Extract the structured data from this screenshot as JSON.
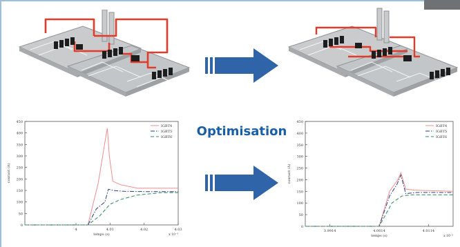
{
  "caption": "Optimisation",
  "colors": {
    "accent": "#1a5fa6",
    "busbar": "#e23b2a",
    "board": "#b9bcbe",
    "arrow": "#2f64a8",
    "igbt4": "#f08c8c",
    "igbt5": "#2a3c86",
    "igbt6": "#2e8b57"
  },
  "chart_data": [
    {
      "type": "line",
      "ylabel": "courant (A)",
      "xlabel": "temps (s)",
      "x_tick_labels": [
        "4",
        "4.01",
        "4.02",
        "4.03"
      ],
      "x_exponent": "x 10⁻³",
      "y_tick_labels": [
        "0",
        "50",
        "100",
        "150",
        "200",
        "250",
        "300",
        "350",
        "400",
        "450"
      ],
      "xlim": [
        3.985,
        4.03
      ],
      "ylim": [
        0,
        450
      ],
      "legend_position": "top-right",
      "series": [
        {
          "name": "IGBT4",
          "color_key": "igbt4",
          "dash": "solid",
          "x": [
            3.985,
            4.0,
            4.0035,
            4.0065,
            4.0085,
            4.0092,
            4.0098,
            4.0108,
            4.013,
            4.018,
            4.02,
            4.03
          ],
          "y": [
            0,
            0,
            0,
            180,
            360,
            420,
            300,
            190,
            175,
            160,
            160,
            160
          ]
        },
        {
          "name": "IGBT5",
          "color_key": "igbt5",
          "dash": "dashdot",
          "x": [
            3.985,
            4.0,
            4.0035,
            4.006,
            4.0085,
            4.0095,
            4.011,
            4.014,
            4.02,
            4.03
          ],
          "y": [
            0,
            0,
            0,
            70,
            100,
            155,
            150,
            146,
            145,
            145
          ]
        },
        {
          "name": "IGBT6",
          "color_key": "igbt6",
          "dash": "dashed",
          "x": [
            3.985,
            4.0,
            4.0035,
            4.007,
            4.01,
            4.013,
            4.018,
            4.025,
            4.03
          ],
          "y": [
            0,
            0,
            0,
            40,
            90,
            110,
            130,
            140,
            140
          ]
        }
      ]
    },
    {
      "type": "line",
      "ylabel": "courant (A)",
      "xlabel": "temps (s)",
      "x_tick_labels": [
        "3.9914",
        "4.0014",
        "4.0114"
      ],
      "x_exponent": "x 10⁻³",
      "y_tick_labels": [
        "0",
        "50",
        "100",
        "150",
        "200",
        "250",
        "300",
        "350",
        "400",
        "450"
      ],
      "xlim": [
        3.9864,
        4.0164
      ],
      "ylim": [
        0,
        450
      ],
      "legend_position": "top-right",
      "series": [
        {
          "name": "IGBT4",
          "color_key": "igbt4",
          "dash": "solid",
          "x": [
            3.9864,
            4.0005,
            4.0014,
            4.0035,
            4.0052,
            4.0058,
            4.0068,
            4.0085,
            4.0164
          ],
          "y": [
            0,
            0,
            0,
            150,
            200,
            230,
            160,
            155,
            150
          ]
        },
        {
          "name": "IGBT5",
          "color_key": "igbt5",
          "dash": "dashdot",
          "x": [
            3.9864,
            4.0005,
            4.0014,
            4.0035,
            4.005,
            4.0058,
            4.0068,
            4.009,
            4.0164
          ],
          "y": [
            0,
            0,
            0,
            130,
            180,
            220,
            140,
            145,
            145
          ]
        },
        {
          "name": "IGBT6",
          "color_key": "igbt6",
          "dash": "dashed",
          "x": [
            3.9864,
            4.0005,
            4.0014,
            4.004,
            4.006,
            4.008,
            4.0164
          ],
          "y": [
            0,
            0,
            0,
            100,
            130,
            135,
            135
          ]
        }
      ]
    }
  ]
}
